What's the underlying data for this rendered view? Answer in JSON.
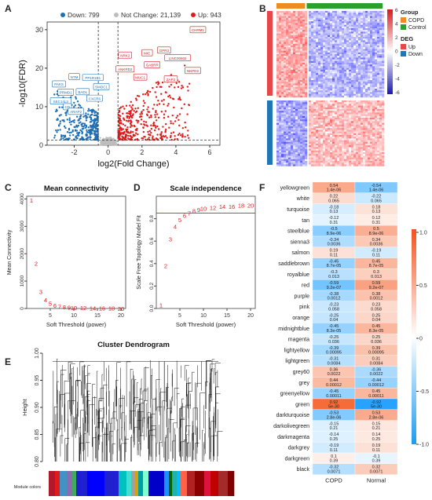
{
  "panels": {
    "a": "A",
    "b": "B",
    "c": "C",
    "d": "D",
    "e": "E",
    "f": "F"
  },
  "chart_data": [
    {
      "id": "A",
      "type": "scatter",
      "legend": [
        {
          "name": "Down: 799",
          "color": "#1f6fb4"
        },
        {
          "name": "Not Change: 21,139",
          "color": "#bdbdbd"
        },
        {
          "name": "Up: 943",
          "color": "#e31a1c"
        }
      ],
      "xlabel": "log2(Fold Change)",
      "ylabel": "-log10(FDR)",
      "xticks": [
        "-2",
        "0",
        "2",
        "4",
        "6"
      ],
      "yticks": [
        "0",
        "10",
        "20",
        "30"
      ],
      "xlim": [
        -3.6,
        6.6
      ],
      "ylim": [
        0,
        32
      ],
      "thresholds": {
        "x": [
          -0.58,
          0.58
        ],
        "y": 1.3
      },
      "up_labels": [
        {
          "t": "CHRM1",
          "x": 5.3,
          "y": 29.8
        },
        {
          "t": "NRK2",
          "x": 1.0,
          "y": 23.2
        },
        {
          "t": "MIC",
          "x": 2.3,
          "y": 23.8
        },
        {
          "t": "GPR3",
          "x": 3.3,
          "y": 24.5
        },
        {
          "t": "LINC00602",
          "x": 4.1,
          "y": 22.5
        },
        {
          "t": "GABRR",
          "x": 2.6,
          "y": 20.7
        },
        {
          "t": "ANKRD2",
          "x": 1.0,
          "y": 19.6
        },
        {
          "t": "MUC1",
          "x": 1.9,
          "y": 17.5
        },
        {
          "t": "ZAP2",
          "x": 3.7,
          "y": 17.0
        },
        {
          "t": "NKPD2",
          "x": 5.0,
          "y": 19.2
        }
      ],
      "down_labels": [
        {
          "t": "NTM",
          "x": -2.0,
          "y": 17.6
        },
        {
          "t": "PAKS",
          "x": -2.9,
          "y": 15.7
        },
        {
          "t": "PP1R1B1",
          "x": -0.9,
          "y": 17.4
        },
        {
          "t": "SMOC1",
          "x": -0.4,
          "y": 15.0
        },
        {
          "t": "PRMD1",
          "x": -2.5,
          "y": 13.6
        },
        {
          "t": "BADL",
          "x": -1.5,
          "y": 13.7
        },
        {
          "t": "CXCR6",
          "x": -0.8,
          "y": 12.0
        },
        {
          "t": "SEC14L3",
          "x": -2.8,
          "y": 11.3
        },
        {
          "t": "CD",
          "x": -2.4,
          "y": 9.8
        },
        {
          "t": "ARAP2",
          "x": -1.9,
          "y": 8.6
        }
      ]
    },
    {
      "id": "B",
      "type": "heatmap",
      "legend_group_title": "Group",
      "groups": [
        {
          "name": "COPD",
          "color": "#f08a24"
        },
        {
          "name": "Control",
          "color": "#2ca02c"
        }
      ],
      "legend_deg_title": "DEG",
      "degs": [
        {
          "name": "Up",
          "color": "#e8474a"
        },
        {
          "name": "Down",
          "color": "#1f78b4"
        }
      ],
      "scale_ticks": [
        "6",
        "4",
        "2",
        "0",
        "-2",
        "-4",
        "-6"
      ],
      "range": [
        -6,
        6
      ]
    },
    {
      "id": "C",
      "type": "scatter",
      "title": "Mean connectivity",
      "xlabel": "Soft Threshold (power)",
      "ylabel": "Mean Connectivity",
      "xticks": [
        "5",
        "10",
        "15",
        "20"
      ],
      "yticks": [
        "0",
        "1000",
        "2000",
        "3000",
        "4000"
      ],
      "xlim": [
        0,
        21
      ],
      "ylim": [
        0,
        4100
      ],
      "x": [
        1,
        2,
        3,
        4,
        5,
        6,
        7,
        8,
        9,
        10,
        12,
        14,
        16,
        18,
        20
      ],
      "y": [
        3950,
        1650,
        620,
        320,
        180,
        110,
        75,
        55,
        40,
        32,
        22,
        16,
        12,
        9,
        7
      ]
    },
    {
      "id": "D",
      "type": "scatter",
      "title": "Scale independence",
      "xlabel": "Soft Threshold (power)",
      "ylabel": "Scale Free Topology Model Fit",
      "xticks": [
        "5",
        "10",
        "15",
        "20"
      ],
      "yticks": [
        "0.0",
        "0.2",
        "0.4",
        "0.6",
        "0.8"
      ],
      "xlim": [
        0,
        21
      ],
      "ylim": [
        0,
        1.0
      ],
      "hline": 0.85,
      "x": [
        1,
        2,
        3,
        4,
        5,
        6,
        7,
        8,
        9,
        10,
        12,
        14,
        16,
        18,
        20
      ],
      "y": [
        0.03,
        0.38,
        0.62,
        0.73,
        0.79,
        0.83,
        0.85,
        0.87,
        0.88,
        0.89,
        0.9,
        0.91,
        0.91,
        0.92,
        0.92
      ]
    },
    {
      "id": "E",
      "type": "other",
      "title": "Cluster Dendrogram",
      "ylabel": "Height",
      "yticks": [
        "0.80",
        "0.85",
        "0.90",
        "0.95",
        "1.00"
      ],
      "ylim": [
        0.8,
        1.0
      ],
      "module_label": "Module colors"
    },
    {
      "id": "F",
      "type": "heatmap",
      "columns": [
        "COPD",
        "Normal"
      ],
      "scale_ticks": [
        "1.0",
        "0.5",
        "0",
        "-0.5",
        "-1.0"
      ],
      "rows": [
        {
          "module": "yellowgreen",
          "v": [
            0.54,
            -0.54
          ],
          "p": [
            "1.4e-06",
            "1.4e-06"
          ]
        },
        {
          "module": "white",
          "v": [
            0.22,
            -0.22
          ],
          "p": [
            "0.065",
            "0.065"
          ]
        },
        {
          "module": "turquoise",
          "v": [
            -0.18,
            0.18
          ],
          "p": [
            "0.13",
            "0.13"
          ]
        },
        {
          "module": "tan",
          "v": [
            -0.12,
            0.12
          ],
          "p": [
            "0.31",
            "0.31"
          ]
        },
        {
          "module": "steelblue",
          "v": [
            -0.5,
            0.5
          ],
          "p": [
            "8.9e-06",
            "8.9e-06"
          ]
        },
        {
          "module": "sienna3",
          "v": [
            -0.34,
            0.34
          ],
          "p": [
            "0.0036",
            "0.0036"
          ]
        },
        {
          "module": "salmon",
          "v": [
            0.19,
            -0.19
          ],
          "p": [
            "0.11",
            "0.11"
          ]
        },
        {
          "module": "saddlebrown",
          "v": [
            -0.45,
            0.45
          ],
          "p": [
            "8.7e-05",
            "8.7e-05"
          ]
        },
        {
          "module": "royalblue",
          "v": [
            -0.3,
            0.3
          ],
          "p": [
            "0.013",
            "0.013"
          ]
        },
        {
          "module": "red",
          "v": [
            -0.59,
            0.59
          ],
          "p": [
            "9.2e-07",
            "9.2e-07"
          ]
        },
        {
          "module": "purple",
          "v": [
            -0.38,
            0.38
          ],
          "p": [
            "0.0012",
            "0.0012"
          ]
        },
        {
          "module": "pink",
          "v": [
            -0.23,
            0.23
          ],
          "p": [
            "0.058",
            "0.058"
          ]
        },
        {
          "module": "orange",
          "v": [
            -0.25,
            0.25
          ],
          "p": [
            "0.04",
            "0.04"
          ]
        },
        {
          "module": "midnightblue",
          "v": [
            -0.45,
            0.45
          ],
          "p": [
            "8.3e-05",
            "8.3e-05"
          ]
        },
        {
          "module": "magenta",
          "v": [
            -0.25,
            0.25
          ],
          "p": [
            "0.036",
            "0.036"
          ]
        },
        {
          "module": "lightyellow",
          "v": [
            -0.39,
            0.39
          ],
          "p": [
            "0.00095",
            "0.00095"
          ]
        },
        {
          "module": "lightgreen",
          "v": [
            -0.31,
            0.31
          ],
          "p": [
            "0.0084",
            "0.0084"
          ]
        },
        {
          "module": "grey60",
          "v": [
            0.36,
            -0.36
          ],
          "p": [
            "0.0022",
            "0.0022"
          ]
        },
        {
          "module": "grey",
          "v": [
            0.44,
            -0.44
          ],
          "p": [
            "0.00012",
            "0.00012"
          ]
        },
        {
          "module": "greenyellow",
          "v": [
            -0.45,
            0.45
          ],
          "p": [
            "0.00011",
            "0.00011"
          ]
        },
        {
          "module": "green",
          "v": [
            0.92,
            -0.92
          ],
          "p": [
            "5e-30",
            "5e-30"
          ]
        },
        {
          "module": "darkturquoise",
          "v": [
            -0.53,
            0.53
          ],
          "p": [
            "2.8e-06",
            "2.8e-06"
          ]
        },
        {
          "module": "darkolivegreen",
          "v": [
            -0.15,
            0.15
          ],
          "p": [
            "0.21",
            "0.21"
          ]
        },
        {
          "module": "darkmagenta",
          "v": [
            -0.14,
            0.14
          ],
          "p": [
            "0.25",
            "0.25"
          ]
        },
        {
          "module": "darkgrey",
          "v": [
            -0.19,
            0.19
          ],
          "p": [
            "0.11",
            "0.11"
          ]
        },
        {
          "module": "darkgreen",
          "v": [
            0.1,
            -0.1
          ],
          "p": [
            "0.39",
            "0.39"
          ]
        },
        {
          "module": "black",
          "v": [
            -0.32,
            0.32
          ],
          "p": [
            "0.0071",
            "0.0071"
          ]
        }
      ]
    }
  ]
}
